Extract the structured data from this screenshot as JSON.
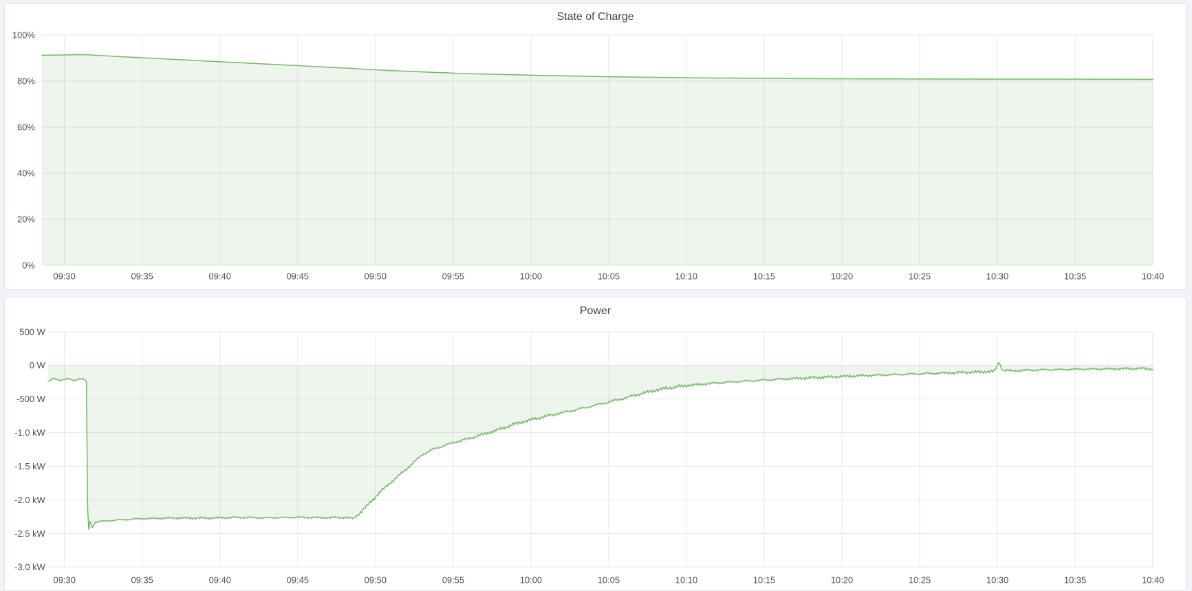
{
  "page": {
    "background_color": "#f2f3f7",
    "panel_background": "#ffffff",
    "panel_border_color": "#e3e5ea",
    "grid_color": "#e7e7e7",
    "axis_text_color": "#4a4e57",
    "title_text_color": "#3d434d",
    "accent_green": "#77b46c"
  },
  "chart_data": [
    {
      "type": "area",
      "title": "State of Charge",
      "grid": true,
      "legend": "none",
      "x_axis": {
        "label_type": "time",
        "t_range_min": [
          -1.45,
          70
        ],
        "ticks": [
          {
            "t": 0,
            "label": "09:30"
          },
          {
            "t": 5,
            "label": "09:35"
          },
          {
            "t": 10,
            "label": "09:40"
          },
          {
            "t": 15,
            "label": "09:45"
          },
          {
            "t": 20,
            "label": "09:50"
          },
          {
            "t": 25,
            "label": "09:55"
          },
          {
            "t": 30,
            "label": "10:00"
          },
          {
            "t": 35,
            "label": "10:05"
          },
          {
            "t": 40,
            "label": "10:10"
          },
          {
            "t": 45,
            "label": "10:15"
          },
          {
            "t": 50,
            "label": "10:20"
          },
          {
            "t": 55,
            "label": "10:25"
          },
          {
            "t": 60,
            "label": "10:30"
          },
          {
            "t": 65,
            "label": "10:35"
          },
          {
            "t": 70,
            "label": "10:40"
          }
        ]
      },
      "y_axis": {
        "unit": "%",
        "range": [
          0,
          100
        ],
        "ticks": [
          {
            "v": 100,
            "label": "100%"
          },
          {
            "v": 80,
            "label": "80%"
          },
          {
            "v": 60,
            "label": "60%"
          },
          {
            "v": 40,
            "label": "40%"
          },
          {
            "v": 20,
            "label": "20%"
          },
          {
            "v": 0,
            "label": "0%"
          }
        ]
      },
      "series": [
        {
          "name": "State of Charge",
          "color": "#77b46c",
          "fill_color": "rgba(119,180,108,0.13)",
          "fill_baseline": 0,
          "points": [
            [
              -1.45,
              91.2
            ],
            [
              0,
              91.3
            ],
            [
              0.8,
              91.45
            ],
            [
              1.6,
              91.35
            ],
            [
              2.5,
              91.0
            ],
            [
              3.5,
              90.6
            ],
            [
              5,
              90.1
            ],
            [
              6.5,
              89.55
            ],
            [
              8,
              89.05
            ],
            [
              9.5,
              88.55
            ],
            [
              11,
              88.0
            ],
            [
              12.5,
              87.5
            ],
            [
              14,
              87.0
            ],
            [
              15.5,
              86.5
            ],
            [
              17,
              85.95
            ],
            [
              18.5,
              85.45
            ],
            [
              19.5,
              85.05
            ],
            [
              20.5,
              84.7
            ],
            [
              21.5,
              84.4
            ],
            [
              22.5,
              84.1
            ],
            [
              23.5,
              83.8
            ],
            [
              24.5,
              83.55
            ],
            [
              25.5,
              83.3
            ],
            [
              26.5,
              83.1
            ],
            [
              28,
              82.85
            ],
            [
              29.5,
              82.6
            ],
            [
              31,
              82.35
            ],
            [
              33,
              82.1
            ],
            [
              35,
              81.85
            ],
            [
              37,
              81.65
            ],
            [
              39,
              81.5
            ],
            [
              41,
              81.35
            ],
            [
              43,
              81.25
            ],
            [
              45,
              81.15
            ],
            [
              47,
              81.05
            ],
            [
              50,
              80.98
            ],
            [
              53,
              80.92
            ],
            [
              56,
              80.87
            ],
            [
              60,
              80.82
            ],
            [
              64,
              80.79
            ],
            [
              67,
              80.77
            ],
            [
              70,
              80.75
            ]
          ]
        }
      ]
    },
    {
      "type": "area",
      "title": "Power",
      "grid": true,
      "legend": "none",
      "x_axis": {
        "label_type": "time",
        "t_range_min": [
          -1.06,
          70
        ],
        "ticks": [
          {
            "t": 0,
            "label": "09:30"
          },
          {
            "t": 5,
            "label": "09:35"
          },
          {
            "t": 10,
            "label": "09:40"
          },
          {
            "t": 15,
            "label": "09:45"
          },
          {
            "t": 20,
            "label": "09:50"
          },
          {
            "t": 25,
            "label": "09:55"
          },
          {
            "t": 30,
            "label": "10:00"
          },
          {
            "t": 35,
            "label": "10:05"
          },
          {
            "t": 40,
            "label": "10:10"
          },
          {
            "t": 45,
            "label": "10:15"
          },
          {
            "t": 50,
            "label": "10:20"
          },
          {
            "t": 55,
            "label": "10:25"
          },
          {
            "t": 60,
            "label": "10:30"
          },
          {
            "t": 65,
            "label": "10:35"
          },
          {
            "t": 70,
            "label": "10:40"
          }
        ]
      },
      "y_axis": {
        "unit": "W",
        "range": [
          -3000,
          500
        ],
        "ticks": [
          {
            "v": 500,
            "label": "500 W"
          },
          {
            "v": 0,
            "label": "0 W"
          },
          {
            "v": -500,
            "label": "-500 W"
          },
          {
            "v": -1000,
            "label": "-1.0 kW"
          },
          {
            "v": -1500,
            "label": "-1.5 kW"
          },
          {
            "v": -2000,
            "label": "-2.0 kW"
          },
          {
            "v": -2500,
            "label": "-2.5 kW"
          },
          {
            "v": -3000,
            "label": "-3.0 kW"
          }
        ]
      },
      "series": [
        {
          "name": "Power",
          "color": "#77b46c",
          "fill_color": "rgba(119,180,108,0.13)",
          "fill_baseline": 0,
          "envelope": [
            [
              -1.06,
              -240
            ],
            [
              -0.7,
              -195
            ],
            [
              -0.3,
              -220
            ],
            [
              0.2,
              -198
            ],
            [
              0.6,
              -228
            ],
            [
              1.0,
              -192
            ],
            [
              1.3,
              -212
            ],
            [
              1.45,
              -265
            ],
            [
              1.5,
              -2590
            ],
            [
              1.62,
              -2310
            ],
            [
              1.8,
              -2420
            ],
            [
              2.0,
              -2330
            ],
            [
              2.6,
              -2315
            ],
            [
              3.5,
              -2300
            ],
            [
              5,
              -2280
            ],
            [
              7,
              -2270
            ],
            [
              9,
              -2272
            ],
            [
              11,
              -2262
            ],
            [
              13,
              -2268
            ],
            [
              15,
              -2260
            ],
            [
              16.5,
              -2266
            ],
            [
              18,
              -2262
            ],
            [
              18.55,
              -2278
            ],
            [
              18.8,
              -2240
            ],
            [
              19.3,
              -2130
            ],
            [
              20,
              -1955
            ],
            [
              20.7,
              -1800
            ],
            [
              21.5,
              -1640
            ],
            [
              22.3,
              -1480
            ],
            [
              23,
              -1330
            ],
            [
              23.8,
              -1240
            ],
            [
              25,
              -1150
            ],
            [
              26,
              -1090
            ],
            [
              27,
              -1020
            ],
            [
              28,
              -950
            ],
            [
              29,
              -870
            ],
            [
              30,
              -810
            ],
            [
              31,
              -755
            ],
            [
              32,
              -705
            ],
            [
              33,
              -655
            ],
            [
              34,
              -600
            ],
            [
              35,
              -545
            ],
            [
              36,
              -490
            ],
            [
              37,
              -425
            ],
            [
              38,
              -370
            ],
            [
              39,
              -330
            ],
            [
              40,
              -300
            ],
            [
              41.5,
              -270
            ],
            [
              43,
              -245
            ],
            [
              44.5,
              -225
            ],
            [
              46,
              -205
            ],
            [
              47.5,
              -190
            ],
            [
              49,
              -175
            ],
            [
              50.5,
              -160
            ],
            [
              52,
              -148
            ],
            [
              54,
              -133
            ],
            [
              56,
              -118
            ],
            [
              58,
              -104
            ],
            [
              59.8,
              -90
            ],
            [
              59.95,
              -30
            ],
            [
              60.1,
              60
            ],
            [
              60.3,
              -75
            ],
            [
              61,
              -80
            ],
            [
              62,
              -72
            ],
            [
              63.5,
              -64
            ],
            [
              65,
              -58
            ],
            [
              66.5,
              -54
            ],
            [
              68,
              -50
            ],
            [
              69.5,
              -46
            ],
            [
              70,
              -60
            ]
          ],
          "noise": {
            "sample_step_min": 0.075,
            "amplitude_w_segments": [
              {
                "t0": -1.06,
                "t1": 1.45,
                "amp": 13
              },
              {
                "t0": 1.45,
                "t1": 1.95,
                "amp": 0
              },
              {
                "t0": 1.95,
                "t1": 18.8,
                "amp": 20
              },
              {
                "t0": 18.8,
                "t1": 40,
                "amp": 30
              },
              {
                "t0": 40,
                "t1": 59.8,
                "amp": 26
              },
              {
                "t0": 59.8,
                "t1": 60.35,
                "amp": 0
              },
              {
                "t0": 60.35,
                "t1": 70,
                "amp": 24
              }
            ]
          }
        }
      ]
    }
  ]
}
